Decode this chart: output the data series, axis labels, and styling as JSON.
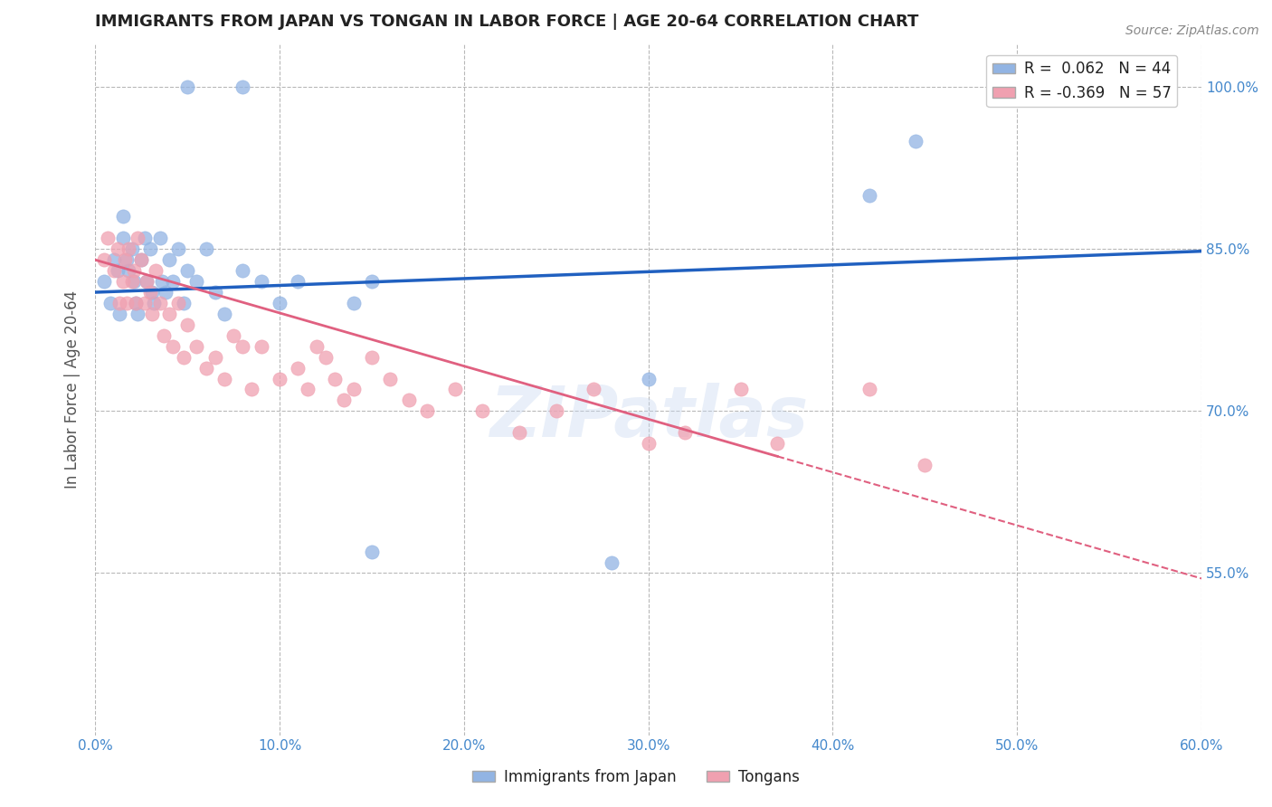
{
  "title": "IMMIGRANTS FROM JAPAN VS TONGAN IN LABOR FORCE | AGE 20-64 CORRELATION CHART",
  "source": "Source: ZipAtlas.com",
  "ylabel": "In Labor Force | Age 20-64",
  "xlim": [
    0.0,
    0.6
  ],
  "ylim": [
    0.4,
    1.04
  ],
  "yticks": [
    0.55,
    0.7,
    0.85,
    1.0
  ],
  "ytick_labels": [
    "55.0%",
    "70.0%",
    "85.0%",
    "100.0%"
  ],
  "xticks": [
    0.0,
    0.1,
    0.2,
    0.3,
    0.4,
    0.5,
    0.6
  ],
  "xtick_labels": [
    "0.0%",
    "10.0%",
    "20.0%",
    "30.0%",
    "40.0%",
    "50.0%",
    "60.0%"
  ],
  "japan_R": 0.062,
  "japan_N": 44,
  "tongan_R": -0.369,
  "tongan_N": 57,
  "japan_color": "#92b4e3",
  "tongan_color": "#f0a0b0",
  "japan_line_color": "#2060c0",
  "tongan_line_color": "#e06080",
  "watermark": "ZIPatlas",
  "legend_entries": [
    "Immigrants from Japan",
    "Tongans"
  ],
  "japan_x": [
    0.005,
    0.008,
    0.01,
    0.012,
    0.013,
    0.015,
    0.015,
    0.017,
    0.018,
    0.02,
    0.021,
    0.022,
    0.023,
    0.025,
    0.027,
    0.028,
    0.03,
    0.031,
    0.032,
    0.035,
    0.036,
    0.038,
    0.04,
    0.042,
    0.045,
    0.048,
    0.05,
    0.055,
    0.06,
    0.065,
    0.07,
    0.08,
    0.09,
    0.1,
    0.11,
    0.14,
    0.15,
    0.3,
    0.42,
    0.445,
    0.05,
    0.08,
    0.15,
    0.28
  ],
  "japan_y": [
    0.82,
    0.8,
    0.84,
    0.83,
    0.79,
    0.86,
    0.88,
    0.84,
    0.83,
    0.85,
    0.82,
    0.8,
    0.79,
    0.84,
    0.86,
    0.82,
    0.85,
    0.81,
    0.8,
    0.86,
    0.82,
    0.81,
    0.84,
    0.82,
    0.85,
    0.8,
    0.83,
    0.82,
    0.85,
    0.81,
    0.79,
    0.83,
    0.82,
    0.8,
    0.82,
    0.8,
    0.82,
    0.73,
    0.9,
    0.95,
    1.0,
    1.0,
    0.57,
    0.56
  ],
  "tongan_x": [
    0.005,
    0.007,
    0.01,
    0.012,
    0.013,
    0.015,
    0.016,
    0.017,
    0.018,
    0.02,
    0.021,
    0.022,
    0.023,
    0.025,
    0.027,
    0.028,
    0.03,
    0.031,
    0.033,
    0.035,
    0.037,
    0.04,
    0.042,
    0.045,
    0.048,
    0.05,
    0.055,
    0.06,
    0.065,
    0.07,
    0.075,
    0.08,
    0.085,
    0.09,
    0.1,
    0.11,
    0.115,
    0.12,
    0.125,
    0.13,
    0.135,
    0.14,
    0.15,
    0.16,
    0.17,
    0.18,
    0.195,
    0.21,
    0.23,
    0.25,
    0.27,
    0.3,
    0.32,
    0.35,
    0.37,
    0.42,
    0.45
  ],
  "tongan_y": [
    0.84,
    0.86,
    0.83,
    0.85,
    0.8,
    0.82,
    0.84,
    0.8,
    0.85,
    0.82,
    0.83,
    0.8,
    0.86,
    0.84,
    0.8,
    0.82,
    0.81,
    0.79,
    0.83,
    0.8,
    0.77,
    0.79,
    0.76,
    0.8,
    0.75,
    0.78,
    0.76,
    0.74,
    0.75,
    0.73,
    0.77,
    0.76,
    0.72,
    0.76,
    0.73,
    0.74,
    0.72,
    0.76,
    0.75,
    0.73,
    0.71,
    0.72,
    0.75,
    0.73,
    0.71,
    0.7,
    0.72,
    0.7,
    0.68,
    0.7,
    0.72,
    0.67,
    0.68,
    0.72,
    0.67,
    0.72,
    0.65
  ],
  "background_color": "#ffffff",
  "grid_color": "#b8b8b8",
  "title_color": "#222222",
  "axis_label_color": "#555555",
  "tick_color": "#4488cc",
  "right_ytick_color": "#4488cc"
}
